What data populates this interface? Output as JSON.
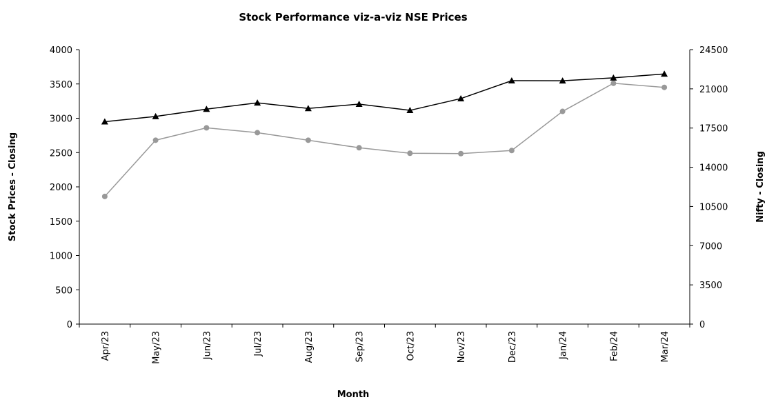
{
  "chart_data": {
    "type": "line",
    "title": "Stock Performance viz-a-viz NSE Prices",
    "x_label": "Month",
    "y_label": "Stock Prices - Closing",
    "y2_label": "Nifty - Closing",
    "categories": [
      "Apr/23",
      "May/23",
      "Jun/23",
      "Jul/23",
      "Aug/23",
      "Sep/23",
      "Oct/23",
      "Nov/23",
      "Dec/23",
      "Jan/24",
      "Feb/24",
      "Mar/24"
    ],
    "series": [
      {
        "color": "#999999",
        "marker": "circle",
        "values": [
          1860,
          2680,
          2860,
          2790,
          2680,
          2570,
          2490,
          2485,
          2530,
          3100,
          3510,
          3450
        ]
      },
      {
        "color": "#000000",
        "marker": "triangle",
        "axis": "y2",
        "values": [
          18065,
          18534,
          19190,
          19754,
          19254,
          19638,
          19080,
          20133,
          21731,
          21726,
          21983,
          22327
        ]
      }
    ],
    "ylim": [
      0,
      4000
    ],
    "yticks": [
      0,
      500,
      1000,
      1500,
      2000,
      2500,
      3000,
      3500,
      4000
    ],
    "y2lim": [
      0,
      24500
    ],
    "y2ticks": [
      0,
      3500,
      7000,
      10500,
      14000,
      17500,
      21000,
      24500
    ],
    "grid": false
  }
}
